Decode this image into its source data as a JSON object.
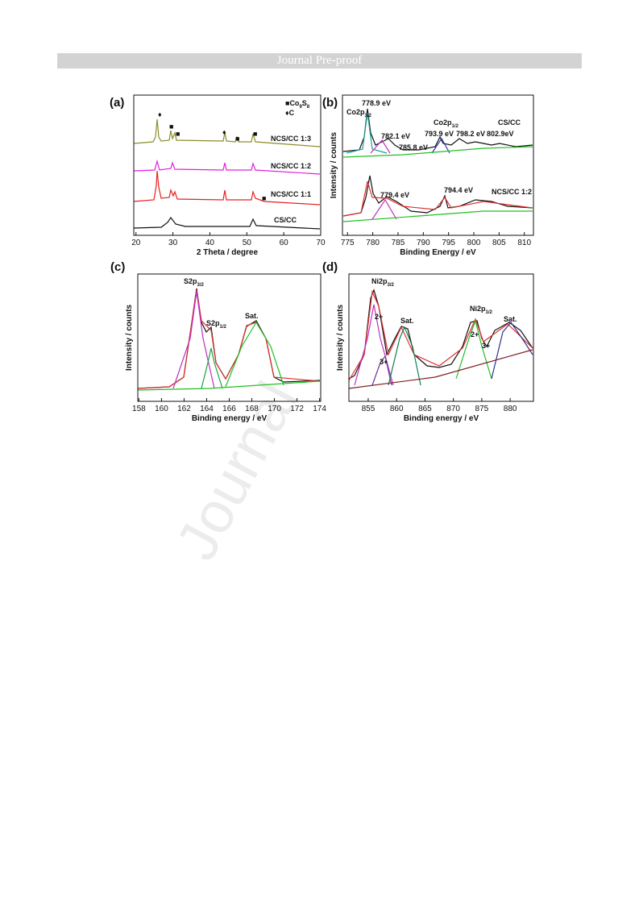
{
  "header": {
    "title": "Journal Pre-proof"
  },
  "watermark": "Journal",
  "figure": {
    "panels": [
      {
        "label": "(a)",
        "xlabel": "2 Theta / degree",
        "xlim": [
          19.4,
          70
        ],
        "xticks": [
          20,
          30,
          40,
          50,
          60,
          70
        ],
        "legend": [
          {
            "symbol": "■",
            "main": "Co",
            "sub1": "9",
            "mid": "S",
            "sub2": "8"
          },
          {
            "symbol": "♦",
            "main": "C"
          }
        ],
        "series_labels": [
          "NCS/CC 1:3",
          "NCS/CC 1:2",
          "NCS/CC 1:1",
          "CS/CC"
        ],
        "markers": [
          "♦",
          "■"
        ]
      },
      {
        "label": "(b)",
        "xlabel": "Binding Energy / eV",
        "ylabel": "Intensity / counts",
        "xlim": [
          774,
          811.8
        ],
        "xticks": [
          775,
          780,
          785,
          790,
          795,
          800,
          805,
          810
        ],
        "peaks": [
          {
            "main": "Co2p",
            "sub": "3/2"
          },
          {
            "main": "Co2p",
            "sub": "1/2"
          }
        ],
        "annotations": [
          "778.9 eV",
          "782.1 eV",
          "785.8 eV",
          "793.9 eV",
          "798.2 eV",
          "802.9eV",
          "CS/CC",
          "779.4 eV",
          "794.4 eV",
          "NCS/CC 1:2"
        ]
      },
      {
        "label": "(c)",
        "xlabel": "Binding energy / eV",
        "ylabel": "Intensity / counts",
        "xlim": [
          157.9,
          174.1
        ],
        "xticks": [
          158,
          160,
          162,
          164,
          166,
          168,
          170,
          172,
          174
        ],
        "peaks": [
          {
            "main": "S2p",
            "sub": "3/2"
          },
          {
            "main": "S2p",
            "sub": "1/2"
          }
        ],
        "annotations": [
          "Sat."
        ]
      },
      {
        "label": "(d)",
        "xlabel": "Binding energy / eV",
        "ylabel": "Intensity / counts",
        "xlim": [
          851.6,
          884.1
        ],
        "xticks": [
          855,
          860,
          865,
          870,
          875,
          880
        ],
        "peaks": [
          {
            "main": "Ni2p",
            "sub": "3/2"
          },
          {
            "main": "Ni2p",
            "sub": "1/2"
          }
        ],
        "annotations": [
          "Sat.",
          "Sat.",
          "2+",
          "3+",
          "2+",
          "3+"
        ]
      }
    ]
  }
}
